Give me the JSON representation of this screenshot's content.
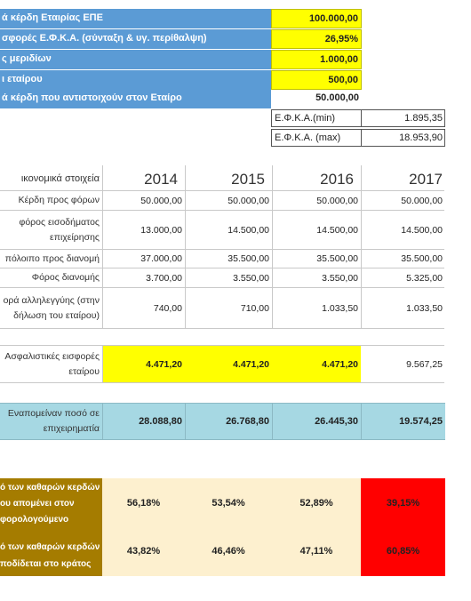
{
  "top": {
    "rows": [
      {
        "label": "ά κέρδη Εταιρίας ΕΠΕ",
        "value": "100.000,00"
      },
      {
        "label": "σφορές  Ε.Φ.Κ.Α. (σύνταξη & υγ. περίθαλψη)",
        "value": "26,95%"
      },
      {
        "label": "ς  μεριδίων",
        "value": "1.000,00"
      },
      {
        "label": "ι εταίρου",
        "value": "500,00"
      },
      {
        "label": "ά κέρδη που αντιστοιχούν στον Εταίρο",
        "value": "50.000,00"
      }
    ],
    "efka_min_label": "Ε.Φ.Κ.Α.(min)",
    "efka_min_value": "1.895,35",
    "efka_max_label": "Ε.Φ.Κ.Α. (max)",
    "efka_max_value": "18.953,90"
  },
  "table": {
    "header_label": "ικονομικά στοιχεία",
    "years": [
      "2014",
      "2015",
      "2016",
      "2017"
    ],
    "rows": [
      {
        "label1": "Κέρδη προς φόρων",
        "label2": "",
        "values": [
          "50.000,00",
          "50.000,00",
          "50.000,00",
          "50.000,00"
        ]
      },
      {
        "label1": "φόρος εισοδήματος",
        "label2": "επιχείρησης",
        "values": [
          "13.000,00",
          "14.500,00",
          "14.500,00",
          "14.500,00"
        ]
      },
      {
        "label1": "πόλοιπο προς διανομή",
        "label2": "",
        "values": [
          "37.000,00",
          "35.500,00",
          "35.500,00",
          "35.500,00"
        ]
      },
      {
        "label1": "Φόρος διανομής",
        "label2": "",
        "values": [
          "3.700,00",
          "3.550,00",
          "3.550,00",
          "5.325,00"
        ]
      },
      {
        "label1": "ορά αλληλεγγύης (στην",
        "label2": "δήλωση του εταίρου)",
        "values": [
          "740,00",
          "710,00",
          "1.033,50",
          "1.033,50"
        ]
      }
    ]
  },
  "insurance": {
    "label1": "Ασφαλιστικές εισφορές",
    "label2": "εταίρου",
    "values": [
      "4.471,20",
      "4.471,20",
      "4.471,20",
      "9.567,25"
    ]
  },
  "remain": {
    "label1": "Εναπομείναν ποσό σε",
    "label2": "επιχειρηματία",
    "values": [
      "28.088,80",
      "26.768,80",
      "26.445,30",
      "19.574,25"
    ]
  },
  "pct": {
    "kept_label1": "ό των καθαρών κερδών",
    "kept_label2": "ου απομένει στον",
    "kept_label3": "φορολογούμενο",
    "kept_values": [
      "56,18%",
      "53,54%",
      "52,89%",
      "39,15%"
    ],
    "state_label1": "ό των καθαρών κερδών",
    "state_label2": "ποδίδεται στο κράτος",
    "state_values": [
      "43,82%",
      "46,46%",
      "47,11%",
      "60,85%"
    ]
  },
  "colors": {
    "blue": "#5b9bd5",
    "yellow": "#ffff00",
    "lightblue": "#a6d8e3",
    "brown": "#a57c00",
    "cream": "#fdf0cf",
    "red": "#ff0000"
  }
}
